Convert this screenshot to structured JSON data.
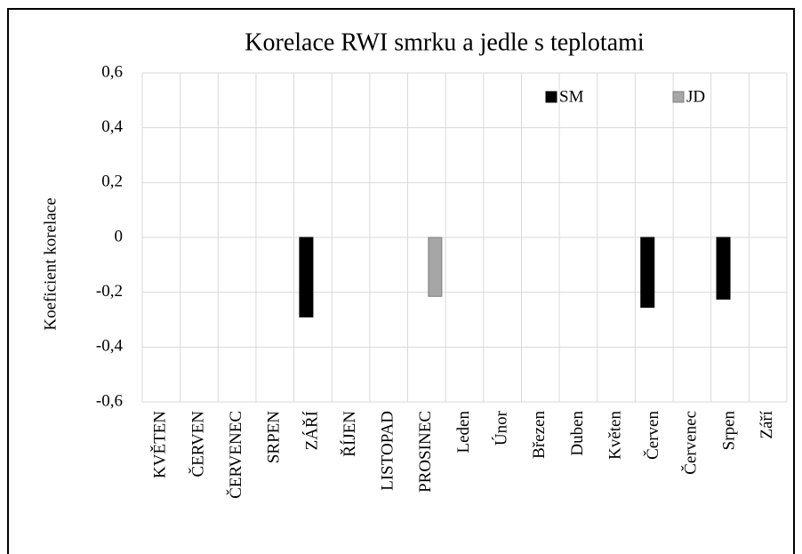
{
  "chart_data": {
    "type": "bar",
    "title": "Korelace RWI smrku a jedle s teplotami",
    "y_label": "Koeficient korelace",
    "categories": [
      "KVĚTEN",
      "ČERVEN",
      "ČERVENEC",
      "SRPEN",
      "ZÁŘÍ",
      "ŘÍJEN",
      "LISTOPAD",
      "PROSINEC",
      "Leden",
      "Únor",
      "Březen",
      "Duben",
      "Květen",
      "Červen",
      "Červenec",
      "Srpen",
      "Září"
    ],
    "series": [
      {
        "name": "SM",
        "color": "#000000",
        "values": [
          null,
          null,
          null,
          null,
          -0.29,
          null,
          null,
          null,
          null,
          null,
          null,
          null,
          null,
          -0.255,
          null,
          -0.225,
          null
        ]
      },
      {
        "name": "JD",
        "color": "#a6a6a6",
        "values": [
          null,
          null,
          null,
          null,
          null,
          null,
          null,
          -0.215,
          null,
          null,
          null,
          null,
          null,
          null,
          null,
          null,
          null
        ]
      }
    ],
    "ylim": [
      -0.6,
      0.6
    ],
    "yticks": [
      {
        "value": -0.6,
        "label": "-0,6"
      },
      {
        "value": -0.4,
        "label": "-0,4"
      },
      {
        "value": -0.2,
        "label": "-0,2"
      },
      0,
      {
        "value": 0.2,
        "label": "0,2"
      },
      {
        "value": 0.4,
        "label": "0,4"
      },
      {
        "value": 0.6,
        "label": "0,6"
      }
    ],
    "grid": true,
    "legend": "top-right"
  }
}
